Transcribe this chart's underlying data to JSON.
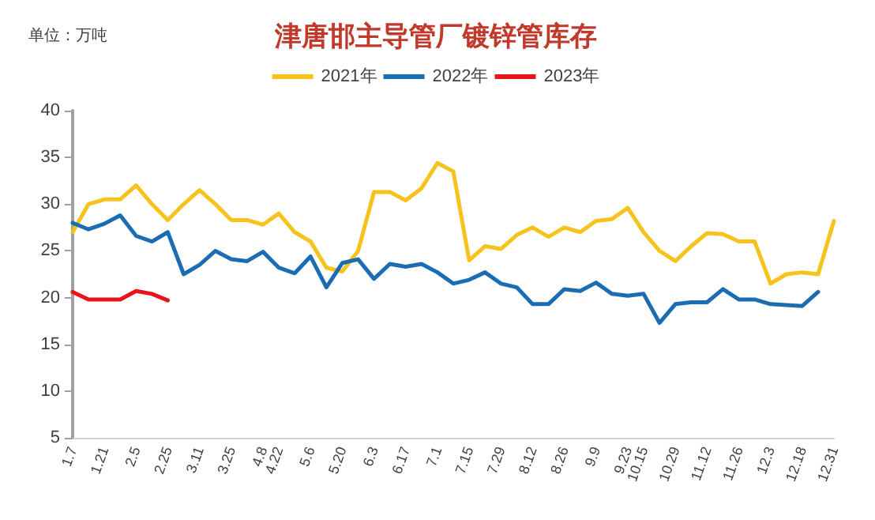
{
  "chart_data": {
    "type": "line",
    "title": "津唐邯主导管厂镀锌管库存",
    "ylabel": "单位：万吨",
    "categories": [
      "1.7",
      null,
      "1.21",
      null,
      "2.5",
      null,
      "2.25",
      null,
      "3.11",
      null,
      "3.25",
      null,
      "4.8",
      "4.22",
      null,
      "5.6",
      null,
      "5.20",
      null,
      "6.3",
      null,
      "6.17",
      null,
      "7.1",
      null,
      "7.15",
      null,
      "7.29",
      null,
      "8.12",
      null,
      "8.26",
      null,
      "9.9",
      null,
      "9.23",
      "10.15",
      null,
      "10.29",
      null,
      "11.12",
      null,
      "11.26",
      null,
      "12.3",
      null,
      "12.18",
      null,
      "12.31"
    ],
    "series": [
      {
        "name": "2021年",
        "color": "#f5c31c",
        "values": [
          27,
          30,
          30.5,
          30.5,
          32,
          30,
          28.3,
          30,
          31.5,
          30,
          28.3,
          28.3,
          27.8,
          29,
          27,
          26,
          23.2,
          22.8,
          25,
          31.3,
          31.3,
          30.4,
          31.7,
          34.4,
          33.5,
          24,
          25.5,
          25.2,
          26.7,
          27.5,
          26.5,
          27.5,
          27,
          28.2,
          28.4,
          29.6,
          27,
          25,
          23.9,
          25.5,
          26.9,
          26.8,
          26,
          26,
          21.5,
          22.5,
          22.7,
          22.5,
          28.2
        ]
      },
      {
        "name": "2022年",
        "color": "#1a6db3",
        "values": [
          28,
          27.3,
          27.9,
          28.8,
          26.6,
          26,
          27,
          22.5,
          23.5,
          25,
          24.1,
          23.9,
          24.9,
          23.2,
          22.6,
          24.4,
          21.1,
          23.7,
          24.1,
          22,
          23.6,
          23.3,
          23.6,
          22.7,
          21.5,
          21.9,
          22.7,
          21.5,
          21.1,
          19.3,
          19.3,
          20.9,
          20.7,
          21.6,
          20.4,
          20.2,
          20.4,
          17.3,
          19.3,
          19.5,
          19.5,
          20.9,
          19.8,
          19.8,
          19.3,
          19.2,
          19.1,
          20.6,
          null
        ]
      },
      {
        "name": "2023年",
        "color": "#e8141c",
        "values": [
          20.6,
          19.8,
          19.8,
          19.8,
          20.7,
          20.4,
          19.7,
          null,
          null,
          null,
          null,
          null,
          null,
          null,
          null,
          null,
          null,
          null,
          null,
          null,
          null,
          null,
          null,
          null,
          null,
          null,
          null,
          null,
          null,
          null,
          null,
          null,
          null,
          null,
          null,
          null,
          null,
          null,
          null,
          null,
          null,
          null,
          null,
          null,
          null,
          null,
          null,
          null,
          null
        ]
      }
    ],
    "ylim": [
      5,
      40
    ],
    "yticks": [
      5,
      10,
      15,
      20,
      25,
      30,
      35,
      40
    ],
    "grid": false,
    "legend": "top",
    "marker": "none",
    "line_style": "solid"
  }
}
